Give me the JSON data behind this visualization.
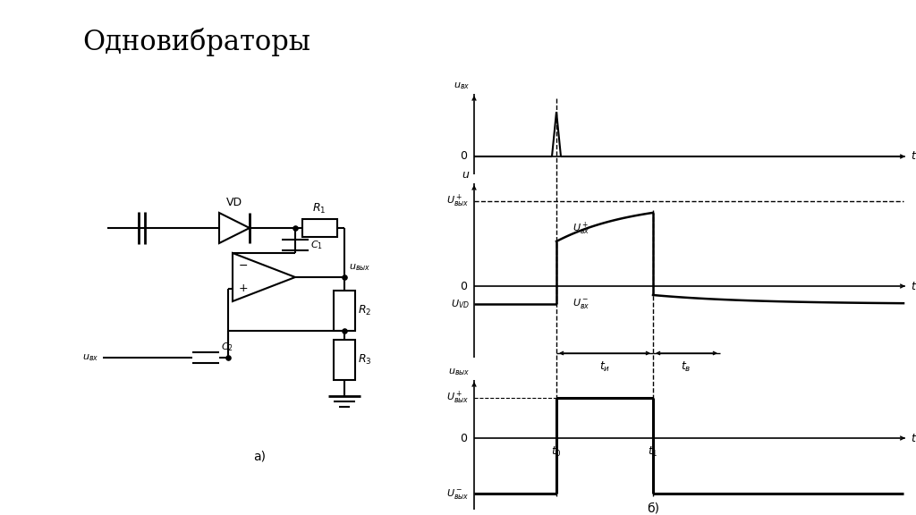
{
  "title": "Одновибраторы",
  "title_fontsize": 22,
  "bg_color": "#ffffff",
  "line_color": "#000000",
  "circuit_label": "а)",
  "waveform_label": "б)"
}
